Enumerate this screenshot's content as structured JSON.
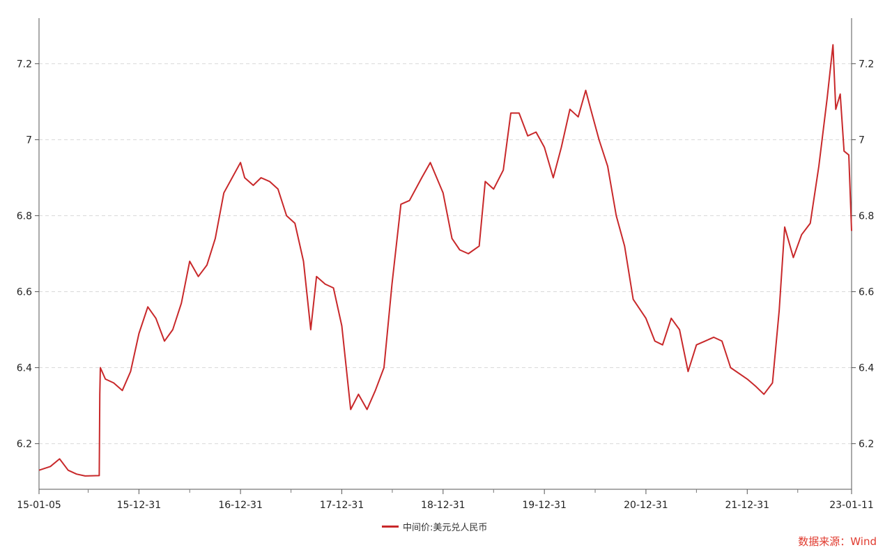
{
  "chart_data": {
    "type": "line",
    "x_tick_labels": [
      "15-01-05",
      "15-12-31",
      "16-12-31",
      "17-12-31",
      "18-12-31",
      "19-12-31",
      "20-12-31",
      "21-12-31",
      "23-01-11"
    ],
    "y_tick_labels": [
      "6.2",
      "6.4",
      "6.6",
      "6.8",
      "7",
      "7.2"
    ],
    "ylim": [
      6.08,
      7.32
    ],
    "grid": true,
    "legend": "bottom-center",
    "series": [
      {
        "name": "中间价:美元兑人民币",
        "color": "#C8282A",
        "points": [
          [
            "2015-01-05",
            6.13
          ],
          [
            "2015-02-15",
            6.14
          ],
          [
            "2015-03-20",
            6.16
          ],
          [
            "2015-04-20",
            6.13
          ],
          [
            "2015-05-20",
            6.12
          ],
          [
            "2015-06-20",
            6.115
          ],
          [
            "2015-08-10",
            6.116
          ],
          [
            "2015-08-12",
            6.33
          ],
          [
            "2015-08-14",
            6.4
          ],
          [
            "2015-09-01",
            6.37
          ],
          [
            "2015-10-01",
            6.36
          ],
          [
            "2015-11-01",
            6.34
          ],
          [
            "2015-12-01",
            6.39
          ],
          [
            "2015-12-31",
            6.49
          ],
          [
            "2016-02-01",
            6.56
          ],
          [
            "2016-03-01",
            6.53
          ],
          [
            "2016-04-01",
            6.47
          ],
          [
            "2016-05-01",
            6.5
          ],
          [
            "2016-06-01",
            6.57
          ],
          [
            "2016-07-01",
            6.68
          ],
          [
            "2016-08-01",
            6.64
          ],
          [
            "2016-09-01",
            6.67
          ],
          [
            "2016-10-01",
            6.74
          ],
          [
            "2016-11-01",
            6.86
          ],
          [
            "2016-12-31",
            6.94
          ],
          [
            "2017-01-15",
            6.9
          ],
          [
            "2017-02-15",
            6.88
          ],
          [
            "2017-03-15",
            6.9
          ],
          [
            "2017-04-15",
            6.89
          ],
          [
            "2017-05-15",
            6.87
          ],
          [
            "2017-06-15",
            6.8
          ],
          [
            "2017-07-15",
            6.78
          ],
          [
            "2017-08-15",
            6.68
          ],
          [
            "2017-09-10",
            6.5
          ],
          [
            "2017-10-01",
            6.64
          ],
          [
            "2017-11-01",
            6.62
          ],
          [
            "2017-12-01",
            6.61
          ],
          [
            "2017-12-31",
            6.51
          ],
          [
            "2018-02-01",
            6.29
          ],
          [
            "2018-03-01",
            6.33
          ],
          [
            "2018-04-01",
            6.29
          ],
          [
            "2018-05-01",
            6.34
          ],
          [
            "2018-06-01",
            6.4
          ],
          [
            "2018-06-30",
            6.62
          ],
          [
            "2018-08-01",
            6.83
          ],
          [
            "2018-09-01",
            6.84
          ],
          [
            "2018-10-15",
            6.9
          ],
          [
            "2018-11-15",
            6.94
          ],
          [
            "2018-12-31",
            6.86
          ],
          [
            "2019-02-01",
            6.74
          ],
          [
            "2019-03-01",
            6.71
          ],
          [
            "2019-04-01",
            6.7
          ],
          [
            "2019-05-10",
            6.72
          ],
          [
            "2019-06-01",
            6.89
          ],
          [
            "2019-07-01",
            6.87
          ],
          [
            "2019-08-05",
            6.92
          ],
          [
            "2019-09-01",
            7.07
          ],
          [
            "2019-10-01",
            7.07
          ],
          [
            "2019-11-01",
            7.01
          ],
          [
            "2019-12-01",
            7.02
          ],
          [
            "2019-12-31",
            6.98
          ],
          [
            "2020-02-01",
            6.9
          ],
          [
            "2020-03-01",
            6.98
          ],
          [
            "2020-04-01",
            7.08
          ],
          [
            "2020-05-01",
            7.06
          ],
          [
            "2020-05-28",
            7.13
          ],
          [
            "2020-06-15",
            7.08
          ],
          [
            "2020-07-15",
            7.0
          ],
          [
            "2020-08-15",
            6.93
          ],
          [
            "2020-09-15",
            6.8
          ],
          [
            "2020-10-15",
            6.72
          ],
          [
            "2020-11-15",
            6.58
          ],
          [
            "2020-12-31",
            6.53
          ],
          [
            "2021-02-01",
            6.47
          ],
          [
            "2021-03-01",
            6.46
          ],
          [
            "2021-04-01",
            6.53
          ],
          [
            "2021-05-01",
            6.5
          ],
          [
            "2021-06-01",
            6.39
          ],
          [
            "2021-07-01",
            6.46
          ],
          [
            "2021-08-01",
            6.47
          ],
          [
            "2021-09-01",
            6.48
          ],
          [
            "2021-10-01",
            6.47
          ],
          [
            "2021-11-01",
            6.4
          ],
          [
            "2021-12-31",
            6.37
          ],
          [
            "2022-02-01",
            6.35
          ],
          [
            "2022-03-01",
            6.33
          ],
          [
            "2022-04-01",
            6.36
          ],
          [
            "2022-04-25",
            6.55
          ],
          [
            "2022-05-15",
            6.77
          ],
          [
            "2022-06-15",
            6.69
          ],
          [
            "2022-07-15",
            6.75
          ],
          [
            "2022-08-15",
            6.78
          ],
          [
            "2022-09-15",
            6.93
          ],
          [
            "2022-10-15",
            7.11
          ],
          [
            "2022-11-05",
            7.25
          ],
          [
            "2022-11-15",
            7.08
          ],
          [
            "2022-12-01",
            7.12
          ],
          [
            "2022-12-15",
            6.97
          ],
          [
            "2023-01-01",
            6.96
          ],
          [
            "2023-01-11",
            6.76
          ]
        ]
      }
    ]
  },
  "legend": {
    "label": "中间价:美元兑人民币"
  },
  "source": "数据来源：Wind"
}
